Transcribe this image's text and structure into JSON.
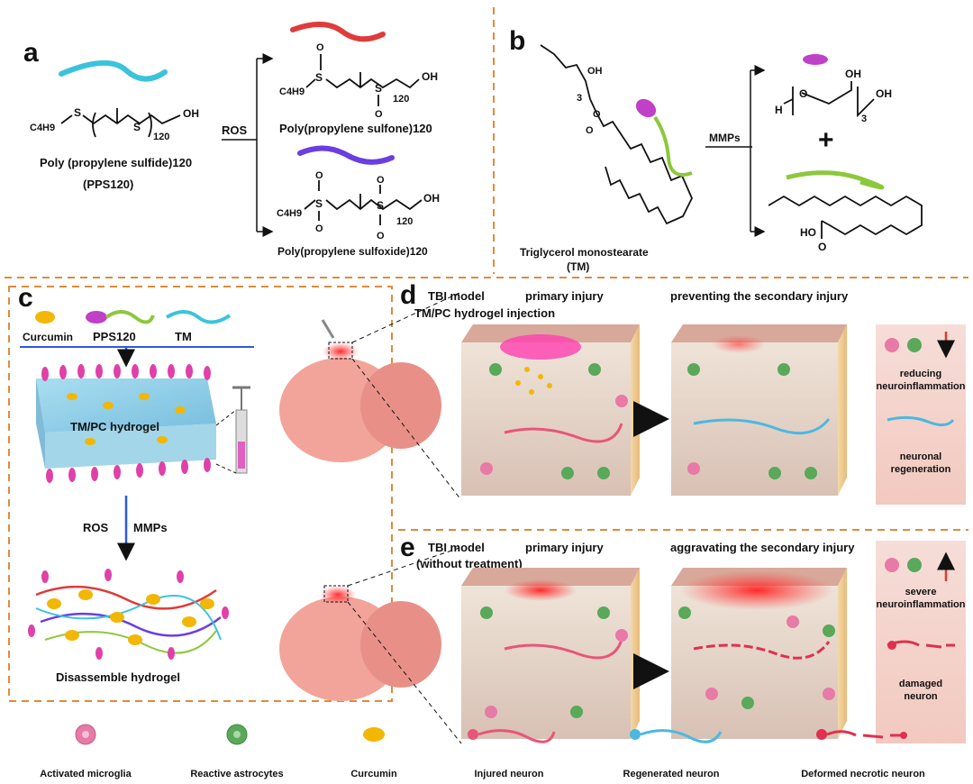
{
  "panels": {
    "a": {
      "label": "a",
      "pps_sub_left": "C4H9",
      "pps_subscript": "120",
      "reagent": "ROS",
      "pps_name": "Poly (propylene sulfide)120",
      "pps_abbrev": "(PPS120)",
      "sulfone_name": "Poly(propylene sulfone)120",
      "sulfoxide_name": "Poly(propylene sulfoxide)120",
      "oh": "OH",
      "s": "S",
      "o": "O"
    },
    "b": {
      "label": "b",
      "reagent": "MMPs",
      "tm_name": "Triglycerol monostearate",
      "tm_abbrev": "(TM)",
      "plus": "+",
      "h": "H",
      "oh": "OH",
      "ho": "HO",
      "o": "O",
      "n3": "3"
    },
    "c": {
      "label": "c",
      "components": [
        "Curcumin",
        "PPS120",
        "TM"
      ],
      "hydrogel": "TM/PC hydrogel",
      "trigger_1": "ROS",
      "trigger_2": "MMPs",
      "result": "Disassemble hydrogel"
    },
    "d": {
      "label": "d",
      "model": "TBI model",
      "treatment": "TM/PC hydrogel injection",
      "stage_1": "primary injury",
      "stage_2": "preventing the secondary injury",
      "outcome_1": [
        "reducing",
        "neuroinflammation"
      ],
      "outcome_2": [
        "neuronal",
        "regeneration"
      ],
      "trend": "down"
    },
    "e": {
      "label": "e",
      "model": "TBI model",
      "treatment": "(without treatment)",
      "stage_1": "primary injury",
      "stage_2": "aggravating the secondary injury",
      "outcome_1": [
        "severe",
        "neuroinflammation"
      ],
      "outcome_2": [
        "damaged",
        "neuron"
      ],
      "trend": "up"
    }
  },
  "legend": [
    {
      "label": "Activated microglia",
      "color": "#e77aa6"
    },
    {
      "label": "Reactive astrocytes",
      "color": "#5aa85a"
    },
    {
      "label": "Curcumin",
      "color": "#f2b705"
    },
    {
      "label": "Injured neuron",
      "color": "#e8557a"
    },
    {
      "label": "Regenerated neuron",
      "color": "#4cb8e0"
    },
    {
      "label": "Deformed necrotic neuron",
      "color": "#e0304f"
    }
  ],
  "colors": {
    "divider": "#e08a3c",
    "pps": "#3cc3dc",
    "sulfone": "#e03a3a",
    "sulfoxide": "#6a3ee0",
    "tm_head": "#c040c8",
    "tm_tail": "#8cc83c",
    "arrow_blue": "#2e58e0",
    "arrow_red": "#e03a2a"
  }
}
